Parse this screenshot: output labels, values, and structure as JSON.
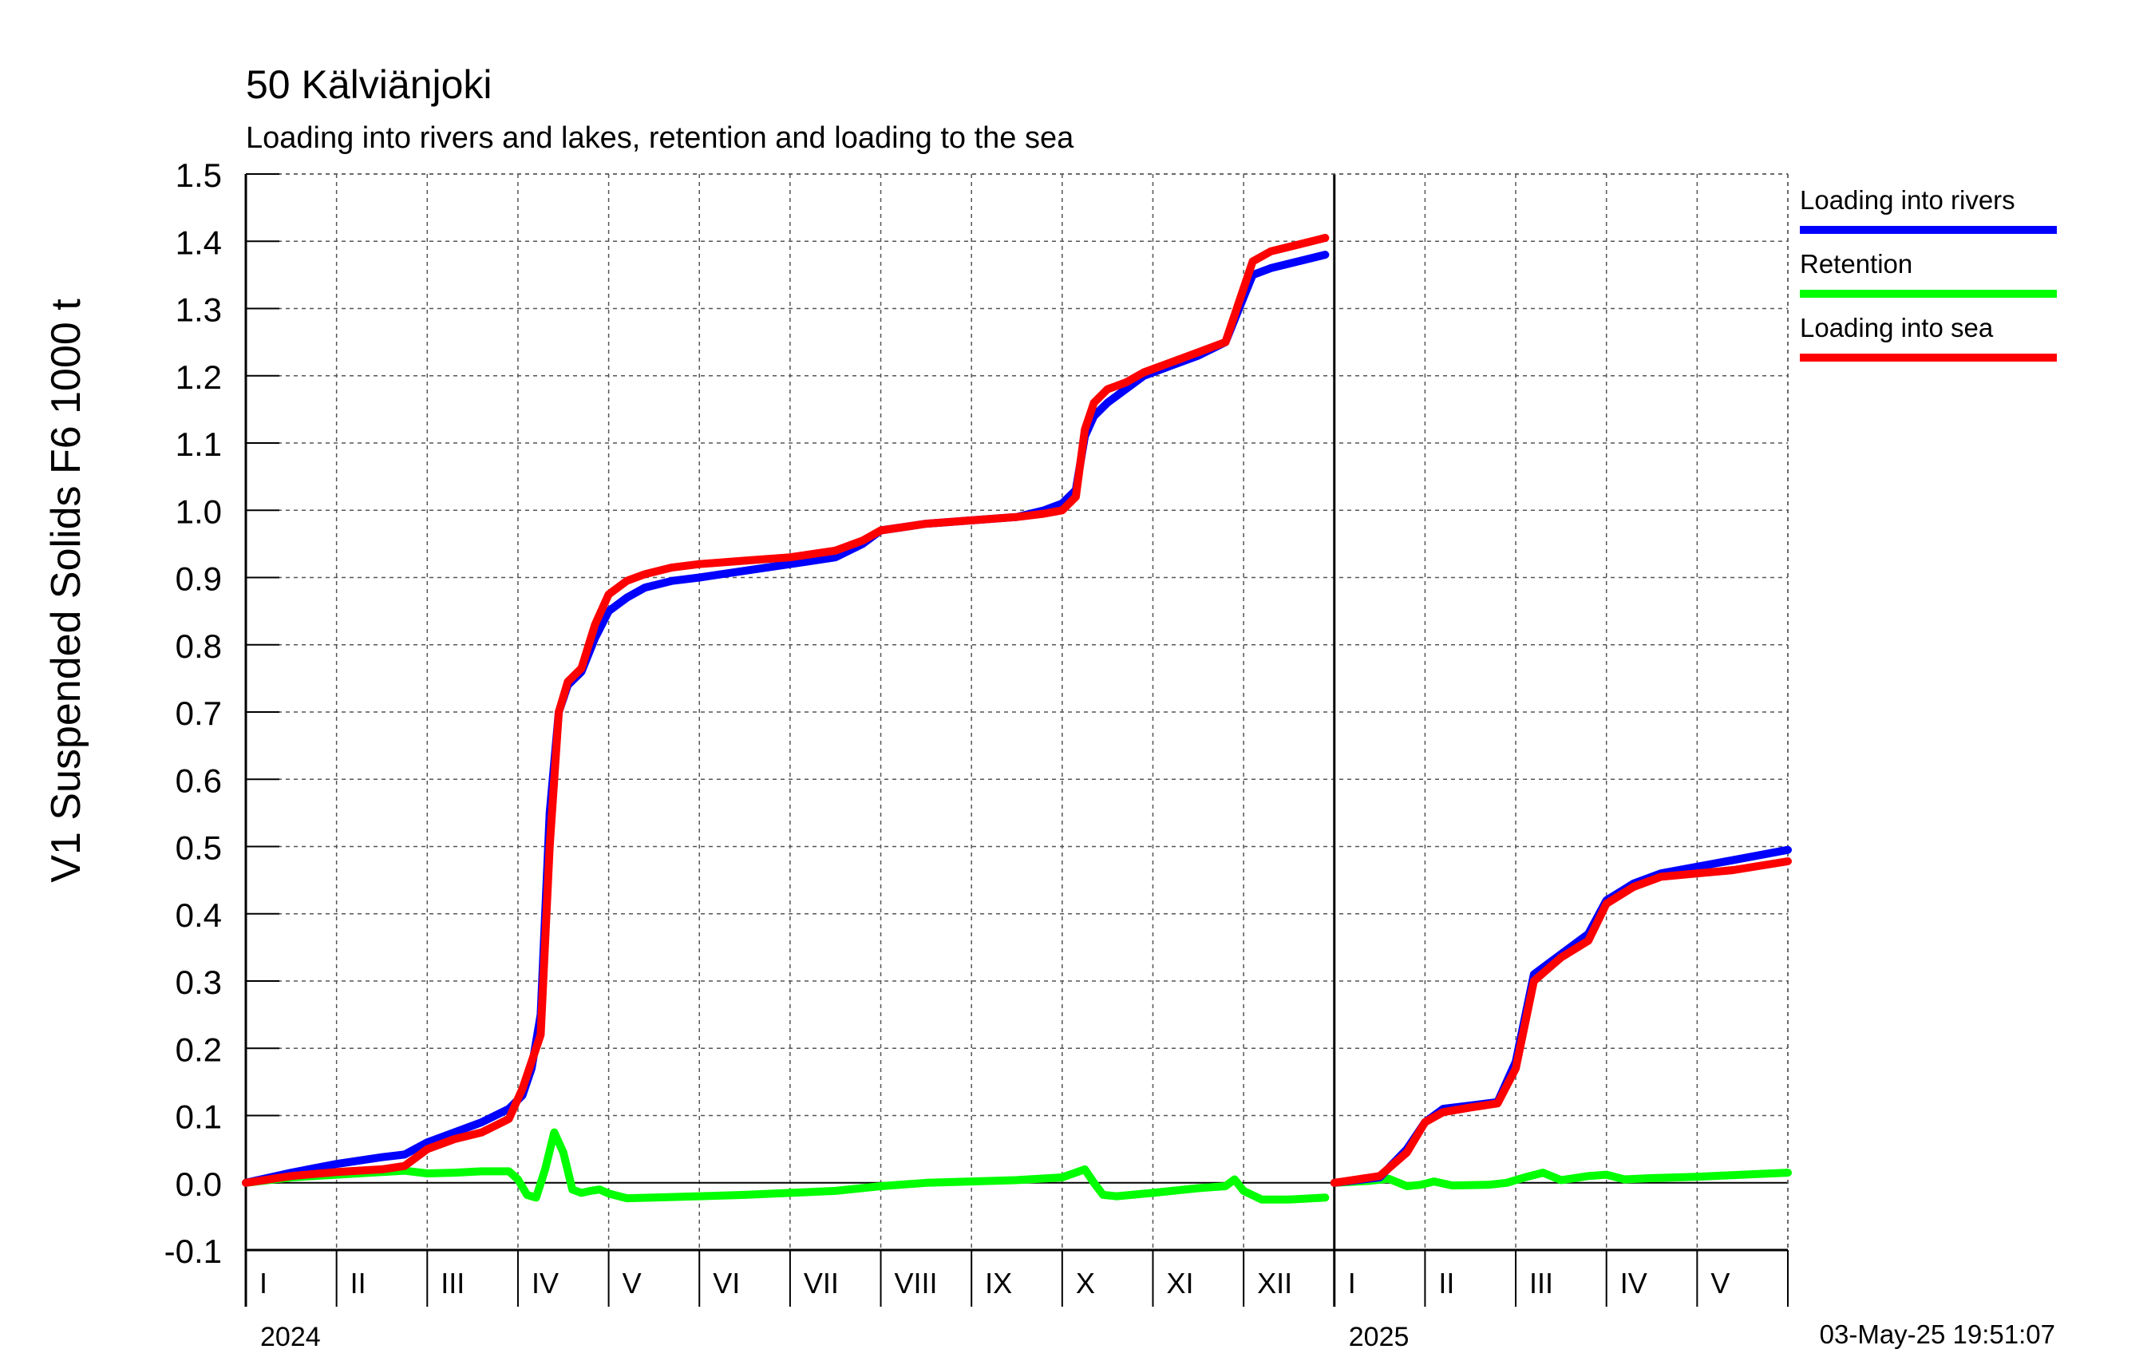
{
  "chart_data": {
    "type": "line",
    "title": "50 Kälviänjoki",
    "subtitle": "Loading into rivers and lakes, retention and loading to the sea",
    "ylabel": "V1 Suspended Solids F6 1000 t",
    "xlabel": "",
    "ylim": [
      -0.1,
      1.5
    ],
    "yticks": [
      "-0.1",
      "0.0",
      "0.1",
      "0.2",
      "0.3",
      "0.4",
      "0.5",
      "0.6",
      "0.7",
      "0.8",
      "0.9",
      "1.0",
      "1.1",
      "1.2",
      "1.3",
      "1.4",
      "1.5"
    ],
    "grid": true,
    "legend_position": "right",
    "x_range_months": [
      0,
      17
    ],
    "month_labels": [
      "I",
      "II",
      "III",
      "IV",
      "V",
      "VI",
      "VII",
      "VIII",
      "IX",
      "X",
      "XI",
      "XII",
      "I",
      "II",
      "III",
      "IV",
      "V"
    ],
    "year_labels": [
      {
        "label": "2024",
        "month": 0
      },
      {
        "label": "2025",
        "month": 12
      }
    ],
    "timestamp": "03-May-25 19:51:07",
    "series": [
      {
        "name": "Loading into rivers",
        "color": "#0000ff",
        "segments": [
          {
            "x": [
              0,
              0.5,
              1.0,
              1.5,
              1.75,
              2.0,
              2.3,
              2.6,
              2.9,
              3.05,
              3.15,
              3.25,
              3.35,
              3.45,
              3.55,
              3.7,
              3.85,
              4.0,
              4.2,
              4.4,
              4.7,
              5.0,
              5.5,
              6.0,
              6.5,
              6.8,
              7.0,
              7.5,
              8.0,
              8.5,
              8.8,
              9.0,
              9.15,
              9.25,
              9.35,
              9.5,
              9.7,
              9.9,
              10.2,
              10.5,
              10.8,
              10.95,
              11.1,
              11.3,
              11.6,
              11.9
            ],
            "y": [
              0.0,
              0.015,
              0.028,
              0.038,
              0.042,
              0.06,
              0.075,
              0.09,
              0.11,
              0.13,
              0.17,
              0.25,
              0.55,
              0.7,
              0.74,
              0.76,
              0.81,
              0.85,
              0.87,
              0.885,
              0.895,
              0.9,
              0.91,
              0.92,
              0.93,
              0.95,
              0.97,
              0.98,
              0.985,
              0.99,
              1.0,
              1.01,
              1.03,
              1.11,
              1.14,
              1.16,
              1.18,
              1.2,
              1.215,
              1.23,
              1.25,
              1.3,
              1.35,
              1.36,
              1.37,
              1.38
            ]
          },
          {
            "x": [
              12.0,
              12.5,
              12.8,
              13.0,
              13.2,
              13.5,
              13.8,
              14.0,
              14.2,
              14.5,
              14.8,
              15.0,
              15.3,
              15.6,
              16.0,
              16.4,
              17.0
            ],
            "y": [
              0.0,
              0.008,
              0.05,
              0.09,
              0.11,
              0.115,
              0.12,
              0.18,
              0.31,
              0.34,
              0.37,
              0.42,
              0.445,
              0.46,
              0.47,
              0.48,
              0.495
            ]
          }
        ]
      },
      {
        "name": "Retention",
        "color": "#00ff00",
        "segments": [
          {
            "x": [
              0,
              0.5,
              1.0,
              1.5,
              1.75,
              2.0,
              2.3,
              2.6,
              2.9,
              3.0,
              3.1,
              3.2,
              3.3,
              3.4,
              3.5,
              3.6,
              3.7,
              3.8,
              3.9,
              4.0,
              4.2,
              4.5,
              5.0,
              5.5,
              6.0,
              6.5,
              7.0,
              7.5,
              8.0,
              8.5,
              9.0,
              9.25,
              9.35,
              9.45,
              9.6,
              10.0,
              10.5,
              10.8,
              10.9,
              11.0,
              11.2,
              11.5,
              11.9
            ],
            "y": [
              0.0,
              0.008,
              0.012,
              0.016,
              0.018,
              0.014,
              0.015,
              0.017,
              0.017,
              0.005,
              -0.018,
              -0.022,
              0.02,
              0.075,
              0.045,
              -0.01,
              -0.015,
              -0.012,
              -0.01,
              -0.016,
              -0.023,
              -0.022,
              -0.02,
              -0.018,
              -0.015,
              -0.012,
              -0.005,
              0.0,
              0.002,
              0.004,
              0.008,
              0.02,
              0.0,
              -0.018,
              -0.02,
              -0.015,
              -0.008,
              -0.005,
              0.005,
              -0.012,
              -0.025,
              -0.025,
              -0.022
            ]
          },
          {
            "x": [
              12.0,
              12.4,
              12.6,
              12.8,
              12.95,
              13.1,
              13.3,
              13.7,
              13.9,
              14.1,
              14.3,
              14.5,
              14.8,
              15.0,
              15.2,
              15.5,
              16.0,
              16.5,
              17.0
            ],
            "y": [
              0.0,
              0.003,
              0.006,
              -0.005,
              -0.003,
              0.002,
              -0.004,
              -0.003,
              0.0,
              0.008,
              0.015,
              0.004,
              0.01,
              0.012,
              0.005,
              0.007,
              0.009,
              0.012,
              0.015
            ]
          }
        ]
      },
      {
        "name": "Loading into sea",
        "color": "#ff0000",
        "segments": [
          {
            "x": [
              0,
              0.5,
              1.0,
              1.5,
              1.75,
              2.0,
              2.3,
              2.6,
              2.9,
              3.05,
              3.15,
              3.25,
              3.35,
              3.45,
              3.55,
              3.7,
              3.85,
              4.0,
              4.2,
              4.4,
              4.7,
              5.0,
              5.5,
              6.0,
              6.5,
              6.8,
              7.0,
              7.5,
              8.0,
              8.5,
              8.8,
              9.0,
              9.15,
              9.25,
              9.35,
              9.5,
              9.7,
              9.9,
              10.2,
              10.5,
              10.8,
              10.95,
              11.1,
              11.3,
              11.6,
              11.9
            ],
            "y": [
              0.0,
              0.01,
              0.016,
              0.02,
              0.025,
              0.05,
              0.065,
              0.075,
              0.095,
              0.14,
              0.18,
              0.22,
              0.5,
              0.7,
              0.745,
              0.765,
              0.83,
              0.875,
              0.895,
              0.905,
              0.915,
              0.92,
              0.925,
              0.93,
              0.94,
              0.955,
              0.97,
              0.98,
              0.985,
              0.99,
              0.995,
              1.0,
              1.02,
              1.12,
              1.16,
              1.18,
              1.19,
              1.205,
              1.22,
              1.235,
              1.25,
              1.31,
              1.37,
              1.385,
              1.395,
              1.405
            ]
          },
          {
            "x": [
              12.0,
              12.5,
              12.8,
              13.0,
              13.2,
              13.5,
              13.8,
              14.0,
              14.2,
              14.5,
              14.8,
              15.0,
              15.3,
              15.6,
              16.0,
              16.4,
              17.0
            ],
            "y": [
              0.0,
              0.01,
              0.045,
              0.09,
              0.105,
              0.112,
              0.118,
              0.17,
              0.3,
              0.335,
              0.36,
              0.415,
              0.44,
              0.455,
              0.46,
              0.465,
              0.478
            ]
          }
        ]
      }
    ]
  }
}
